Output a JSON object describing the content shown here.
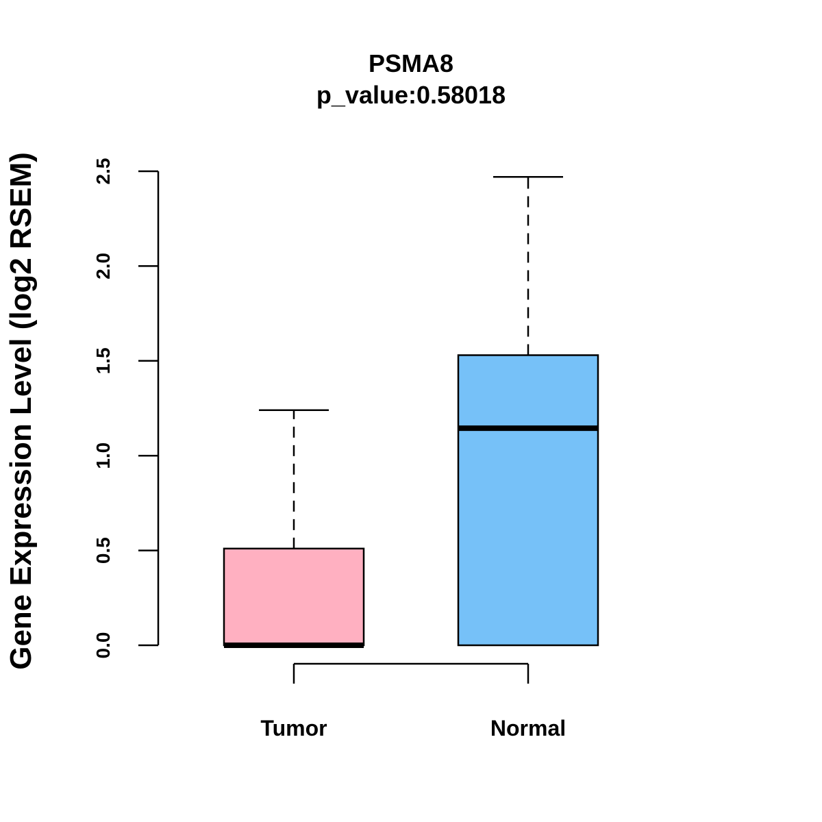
{
  "chart_data": {
    "type": "boxplot",
    "title": "PSMA8",
    "subtitle": "p_value:0.58018",
    "xlabel": "",
    "ylabel": "Gene Expression Level (log2 RSEM)",
    "ylim": [
      0,
      2.5
    ],
    "yticks": [
      "0.0",
      "0.5",
      "1.0",
      "1.5",
      "2.0",
      "2.5"
    ],
    "ytick_values": [
      0,
      0.5,
      1.0,
      1.5,
      2.0,
      2.5
    ],
    "categories": [
      "Tumor",
      "Normal"
    ],
    "boxes": [
      {
        "name": "Tumor",
        "min": 0,
        "q1": 0,
        "median": 0,
        "q3": 0.51,
        "max": 1.24,
        "color": "#FFB0C1"
      },
      {
        "name": "Normal",
        "min": 0,
        "q1": 0,
        "median": 1.145,
        "q3": 1.53,
        "max": 2.47,
        "color": "#76C1F8"
      }
    ],
    "grid": false,
    "legend": "none"
  }
}
